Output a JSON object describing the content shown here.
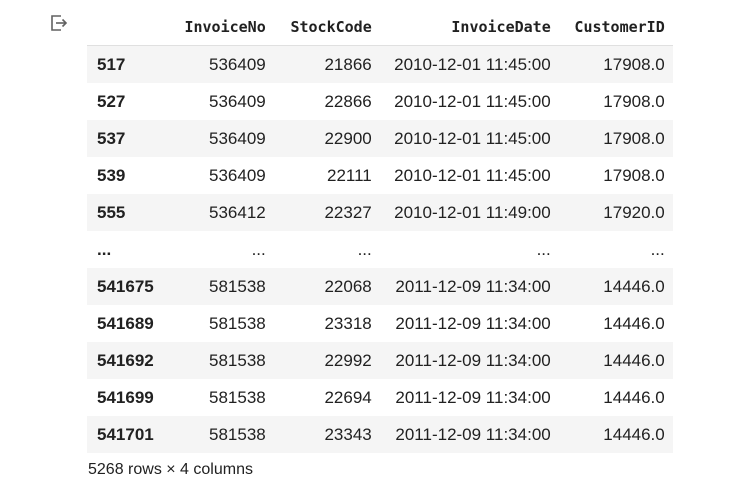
{
  "table": {
    "columns": [
      "InvoiceNo",
      "StockCode",
      "InvoiceDate",
      "CustomerID"
    ],
    "rows": [
      {
        "index": "517",
        "cells": [
          "536409",
          "21866",
          "2010-12-01 11:45:00",
          "17908.0"
        ]
      },
      {
        "index": "527",
        "cells": [
          "536409",
          "22866",
          "2010-12-01 11:45:00",
          "17908.0"
        ]
      },
      {
        "index": "537",
        "cells": [
          "536409",
          "22900",
          "2010-12-01 11:45:00",
          "17908.0"
        ]
      },
      {
        "index": "539",
        "cells": [
          "536409",
          "22111",
          "2010-12-01 11:45:00",
          "17908.0"
        ]
      },
      {
        "index": "555",
        "cells": [
          "536412",
          "22327",
          "2010-12-01 11:49:00",
          "17920.0"
        ]
      },
      {
        "index": "...",
        "cells": [
          "...",
          "...",
          "...",
          "..."
        ]
      },
      {
        "index": "541675",
        "cells": [
          "581538",
          "22068",
          "2011-12-09 11:34:00",
          "14446.0"
        ]
      },
      {
        "index": "541689",
        "cells": [
          "581538",
          "23318",
          "2011-12-09 11:34:00",
          "14446.0"
        ]
      },
      {
        "index": "541692",
        "cells": [
          "581538",
          "22992",
          "2011-12-09 11:34:00",
          "14446.0"
        ]
      },
      {
        "index": "541699",
        "cells": [
          "581538",
          "22694",
          "2011-12-09 11:34:00",
          "14446.0"
        ]
      },
      {
        "index": "541701",
        "cells": [
          "581538",
          "23343",
          "2011-12-09 11:34:00",
          "14446.0"
        ]
      }
    ],
    "shape_text": "5268 rows × 4 columns"
  },
  "icons": {
    "output": "output-redirect-icon"
  },
  "colors": {
    "stripe": "#f5f5f5",
    "text": "#212121"
  }
}
